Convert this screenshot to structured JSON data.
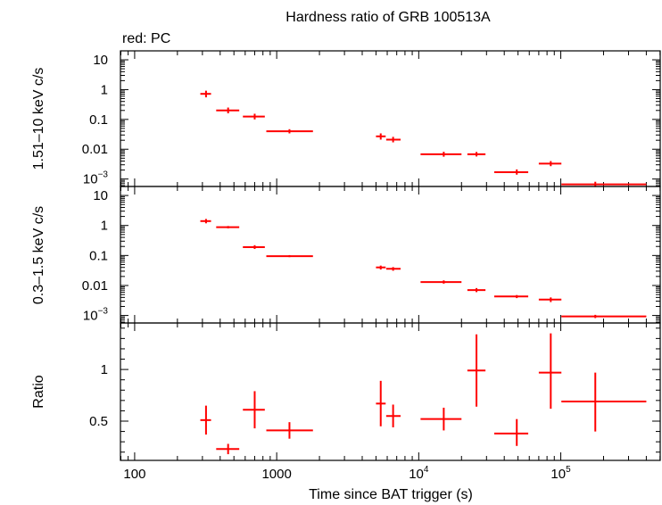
{
  "chart_data": {
    "type": "scatter",
    "title": "Hardness ratio of GRB 100513A",
    "annotation": "red: PC",
    "xlabel": "Time since BAT trigger (s)",
    "x_scale": "log",
    "x_ticks": [
      {
        "value": 100,
        "label": "100"
      },
      {
        "value": 1000,
        "label": "1000"
      },
      {
        "value": 10000,
        "base": "10",
        "exp": "4"
      },
      {
        "value": 100000,
        "base": "10",
        "exp": "5"
      }
    ],
    "series_color": "#ff0000",
    "panels": [
      {
        "id": "hard",
        "ylabel": "1.51–10 keV c/s",
        "y_scale": "log",
        "y_ticks": [
          {
            "value": 10,
            "label": "10"
          },
          {
            "value": 1,
            "label": "1"
          },
          {
            "value": 0.1,
            "label": "0.1"
          },
          {
            "value": 0.01,
            "label": "0.01"
          },
          {
            "value": 0.001,
            "base": "10",
            "exp": "−3"
          }
        ],
        "points": [
          {
            "x": 318,
            "xlo": 290,
            "xhi": 345,
            "y": 0.72,
            "ylo": 0.55,
            "yhi": 0.92
          },
          {
            "x": 455,
            "xlo": 375,
            "xhi": 545,
            "y": 0.2,
            "ylo": 0.16,
            "yhi": 0.25
          },
          {
            "x": 700,
            "xlo": 578,
            "xhi": 825,
            "y": 0.125,
            "ylo": 0.1,
            "yhi": 0.155
          },
          {
            "x": 1230,
            "xlo": 845,
            "xhi": 1800,
            "y": 0.04,
            "ylo": 0.034,
            "yhi": 0.047
          },
          {
            "x": 5400,
            "xlo": 5000,
            "xhi": 5850,
            "y": 0.027,
            "ylo": 0.021,
            "yhi": 0.034
          },
          {
            "x": 6600,
            "xlo": 5900,
            "xhi": 7450,
            "y": 0.021,
            "ylo": 0.017,
            "yhi": 0.026
          },
          {
            "x": 15000,
            "xlo": 10300,
            "xhi": 20000,
            "y": 0.0068,
            "ylo": 0.0056,
            "yhi": 0.0082
          },
          {
            "x": 25500,
            "xlo": 22000,
            "xhi": 29500,
            "y": 0.0068,
            "ylo": 0.0057,
            "yhi": 0.0081
          },
          {
            "x": 49000,
            "xlo": 34000,
            "xhi": 59000,
            "y": 0.0017,
            "ylo": 0.0014,
            "yhi": 0.0021
          },
          {
            "x": 85000,
            "xlo": 70000,
            "xhi": 101000,
            "y": 0.0033,
            "ylo": 0.0027,
            "yhi": 0.004
          },
          {
            "x": 175000,
            "xlo": 101000,
            "xhi": 400000,
            "y": 0.00066,
            "ylo": 0.00054,
            "yhi": 0.00081
          }
        ]
      },
      {
        "id": "soft",
        "ylabel": "0.3–1.5 keV c/s",
        "y_scale": "log",
        "y_ticks": [
          {
            "value": 10,
            "label": "10"
          },
          {
            "value": 1,
            "label": "1"
          },
          {
            "value": 0.1,
            "label": "0.1"
          },
          {
            "value": 0.01,
            "label": "0.01"
          },
          {
            "value": 0.001,
            "base": "10",
            "exp": "−3"
          }
        ],
        "points": [
          {
            "x": 318,
            "xlo": 290,
            "xhi": 345,
            "y": 1.4,
            "ylo": 1.18,
            "yhi": 1.65
          },
          {
            "x": 455,
            "xlo": 375,
            "xhi": 545,
            "y": 0.88,
            "ylo": 0.8,
            "yhi": 0.96
          },
          {
            "x": 700,
            "xlo": 578,
            "xhi": 825,
            "y": 0.19,
            "ylo": 0.165,
            "yhi": 0.22
          },
          {
            "x": 1230,
            "xlo": 845,
            "xhi": 1800,
            "y": 0.095,
            "ylo": 0.088,
            "yhi": 0.103
          },
          {
            "x": 5400,
            "xlo": 5000,
            "xhi": 5850,
            "y": 0.04,
            "ylo": 0.034,
            "yhi": 0.046
          },
          {
            "x": 6600,
            "xlo": 5900,
            "xhi": 7450,
            "y": 0.036,
            "ylo": 0.031,
            "yhi": 0.041
          },
          {
            "x": 15000,
            "xlo": 10300,
            "xhi": 20000,
            "y": 0.013,
            "ylo": 0.0115,
            "yhi": 0.0148
          },
          {
            "x": 25500,
            "xlo": 22000,
            "xhi": 29500,
            "y": 0.007,
            "ylo": 0.006,
            "yhi": 0.0082
          },
          {
            "x": 49000,
            "xlo": 34000,
            "xhi": 59000,
            "y": 0.0043,
            "ylo": 0.0038,
            "yhi": 0.0048
          },
          {
            "x": 85000,
            "xlo": 70000,
            "xhi": 101000,
            "y": 0.0034,
            "ylo": 0.0028,
            "yhi": 0.004
          },
          {
            "x": 175000,
            "xlo": 101000,
            "xhi": 400000,
            "y": 0.00093,
            "ylo": 0.00082,
            "yhi": 0.00105
          }
        ]
      },
      {
        "id": "ratio",
        "ylabel": "Ratio",
        "y_scale": "linear",
        "y_ticks": [
          {
            "value": 0.5,
            "label": "0.5"
          },
          {
            "value": 1,
            "label": "1"
          }
        ],
        "points": [
          {
            "x": 318,
            "xlo": 290,
            "xhi": 345,
            "y": 0.51,
            "ylo": 0.37,
            "yhi": 0.65
          },
          {
            "x": 455,
            "xlo": 375,
            "xhi": 545,
            "y": 0.23,
            "ylo": 0.18,
            "yhi": 0.28
          },
          {
            "x": 700,
            "xlo": 578,
            "xhi": 825,
            "y": 0.61,
            "ylo": 0.43,
            "yhi": 0.79
          },
          {
            "x": 1230,
            "xlo": 845,
            "xhi": 1800,
            "y": 0.41,
            "ylo": 0.33,
            "yhi": 0.49
          },
          {
            "x": 5400,
            "xlo": 5000,
            "xhi": 5850,
            "y": 0.67,
            "ylo": 0.45,
            "yhi": 0.89
          },
          {
            "x": 6600,
            "xlo": 5900,
            "xhi": 7450,
            "y": 0.55,
            "ylo": 0.44,
            "yhi": 0.66
          },
          {
            "x": 15000,
            "xlo": 10300,
            "xhi": 20000,
            "y": 0.52,
            "ylo": 0.41,
            "yhi": 0.63
          },
          {
            "x": 25500,
            "xlo": 22000,
            "xhi": 29500,
            "y": 0.99,
            "ylo": 0.64,
            "yhi": 1.34
          },
          {
            "x": 49000,
            "xlo": 34000,
            "xhi": 59000,
            "y": 0.38,
            "ylo": 0.26,
            "yhi": 0.52
          },
          {
            "x": 85000,
            "xlo": 70000,
            "xhi": 101000,
            "y": 0.97,
            "ylo": 0.62,
            "yhi": 1.35
          },
          {
            "x": 175000,
            "xlo": 101000,
            "xhi": 400000,
            "y": 0.69,
            "ylo": 0.4,
            "yhi": 0.97
          }
        ]
      }
    ]
  }
}
